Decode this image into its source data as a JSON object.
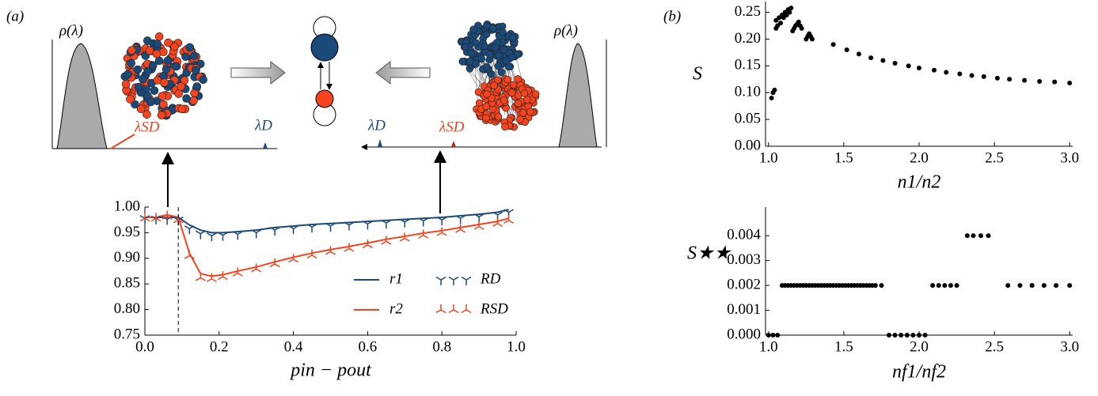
{
  "panel_labels": [
    "(a)",
    "(b)"
  ],
  "insets": {
    "left": {
      "density_label": "ρ(λ)",
      "lambda_sd": "λSD",
      "lambda_d": "λD"
    },
    "right": {
      "density_label": "ρ(λ)",
      "lambda_sd": "λSD",
      "lambda_d": "λD"
    }
  },
  "chart_data": [
    {
      "type": "line",
      "xlabel": "pin − pout",
      "xlim": [
        0,
        1
      ],
      "ylim": [
        0.75,
        1.0
      ],
      "xticks": [
        {
          "value": 0,
          "label": "0.0"
        },
        0.2,
        0.4,
        0.6,
        0.8,
        {
          "value": 1,
          "label": "1.0"
        }
      ],
      "yticks": [
        0.75,
        {
          "value": 0.8,
          "label": "0.80"
        },
        0.85,
        {
          "value": 0.9,
          "label": "0.90"
        },
        0.95,
        {
          "value": 1,
          "label": "1.00"
        }
      ],
      "vline": 0.09,
      "legend": "lower right",
      "x": [
        0,
        0.03,
        0.06,
        0.09,
        0.12,
        0.15,
        0.18,
        0.21,
        0.25,
        0.3,
        0.35,
        0.4,
        0.45,
        0.5,
        0.55,
        0.6,
        0.65,
        0.7,
        0.75,
        0.8,
        0.85,
        0.9,
        0.95,
        0.98
      ],
      "series": [
        {
          "name": "r1",
          "color": "#1a4a7a",
          "marker": "line",
          "values": [
            0.98,
            0.98,
            0.98,
            0.98,
            0.965,
            0.955,
            0.95,
            0.95,
            0.952,
            0.955,
            0.96,
            0.963,
            0.966,
            0.968,
            0.97,
            0.972,
            0.974,
            0.976,
            0.978,
            0.98,
            0.983,
            0.986,
            0.99,
            0.995
          ]
        },
        {
          "name": "r2",
          "color": "#f5431e",
          "marker": "line",
          "values": [
            0.98,
            0.98,
            0.985,
            0.98,
            0.91,
            0.87,
            0.865,
            0.868,
            0.875,
            0.883,
            0.893,
            0.902,
            0.91,
            0.917,
            0.923,
            0.93,
            0.937,
            0.943,
            0.949,
            0.954,
            0.96,
            0.966,
            0.972,
            0.978
          ]
        },
        {
          "name": "RD",
          "color": "#1a4a7a",
          "marker": "tri_down",
          "values": [
            0.978,
            0.977,
            0.976,
            0.975,
            0.958,
            0.948,
            0.944,
            0.945,
            0.947,
            0.95,
            0.955,
            0.958,
            0.961,
            0.963,
            0.965,
            0.967,
            0.969,
            0.971,
            0.973,
            0.975,
            0.978,
            0.981,
            0.985,
            0.99
          ]
        },
        {
          "name": "RSD",
          "color": "#f5431e",
          "marker": "tri_up",
          "values": [
            0.978,
            0.978,
            0.982,
            0.975,
            0.905,
            0.862,
            0.86,
            0.864,
            0.871,
            0.879,
            0.889,
            0.898,
            0.906,
            0.913,
            0.919,
            0.926,
            0.933,
            0.939,
            0.945,
            0.95,
            0.956,
            0.962,
            0.968,
            0.974
          ]
        }
      ]
    },
    {
      "type": "scatter",
      "xlabel": "n1/n2",
      "ylabel": "S",
      "xlim": [
        0.98,
        3.02
      ],
      "ylim": [
        0,
        0.27
      ],
      "xticks": [
        {
          "value": 1,
          "label": "1.0"
        },
        1.5,
        {
          "value": 2,
          "label": "2.0"
        },
        2.5,
        {
          "value": 3,
          "label": "3.0"
        }
      ],
      "yticks": [
        {
          "value": 0,
          "label": "0.00"
        },
        0.05,
        {
          "value": 0.1,
          "label": "0.10"
        },
        0.15,
        {
          "value": 0.2,
          "label": "0.20"
        },
        0.25
      ],
      "series": [
        {
          "name": null,
          "color": "#000000",
          "x": [
            1.02,
            1.03,
            1.04,
            1.05,
            1.05,
            1.06,
            1.07,
            1.08,
            1.09,
            1.1,
            1.11,
            1.12,
            1.13,
            1.14,
            1.15,
            1.16,
            1.17,
            1.18,
            1.19,
            1.2,
            1.21,
            1.22,
            1.25,
            1.26,
            1.27,
            1.28,
            1.29,
            1.43,
            1.52,
            1.6,
            1.68,
            1.76,
            1.84,
            1.93,
            2.0,
            2.1,
            2.18,
            2.27,
            2.35,
            2.43,
            2.52,
            2.6,
            2.7,
            2.8,
            2.9,
            3.0
          ],
          "values": [
            0.09,
            0.1,
            0.105,
            0.22,
            0.235,
            0.225,
            0.24,
            0.23,
            0.245,
            0.24,
            0.25,
            0.245,
            0.255,
            0.25,
            0.258,
            0.215,
            0.22,
            0.225,
            0.228,
            0.232,
            0.225,
            0.22,
            0.2,
            0.205,
            0.21,
            0.205,
            0.2,
            0.19,
            0.18,
            0.172,
            0.165,
            0.16,
            0.155,
            0.15,
            0.146,
            0.142,
            0.138,
            0.135,
            0.132,
            0.13,
            0.127,
            0.125,
            0.123,
            0.121,
            0.12,
            0.118
          ]
        }
      ]
    },
    {
      "type": "scatter",
      "xlabel": "nf1/nf2",
      "ylabel": "S★★",
      "xlim": [
        0.98,
        3.02
      ],
      "ylim": [
        0,
        0.00515
      ],
      "xticks": [
        {
          "value": 1,
          "label": "1.0"
        },
        1.5,
        {
          "value": 2,
          "label": "2.0"
        },
        2.5,
        {
          "value": 3,
          "label": "3.0"
        }
      ],
      "yticks": [
        {
          "value": 0,
          "label": "0.000"
        },
        0.001,
        0.002,
        0.003,
        0.004
      ],
      "series": [
        {
          "name": null,
          "color": "#000000",
          "x": [
            1.0,
            1.03,
            1.06,
            1.09,
            1.11,
            1.13,
            1.15,
            1.17,
            1.19,
            1.21,
            1.23,
            1.25,
            1.27,
            1.29,
            1.31,
            1.33,
            1.35,
            1.37,
            1.39,
            1.41,
            1.43,
            1.45,
            1.47,
            1.49,
            1.51,
            1.53,
            1.55,
            1.57,
            1.59,
            1.61,
            1.63,
            1.65,
            1.67,
            1.69,
            1.71,
            1.75,
            1.8,
            1.84,
            1.88,
            1.92,
            1.96,
            2.0,
            2.04,
            2.09,
            2.13,
            2.17,
            2.21,
            2.25,
            2.32,
            2.36,
            2.41,
            2.46,
            2.59,
            2.67,
            2.75,
            2.83,
            2.91,
            3.0
          ],
          "values": [
            0,
            0,
            0,
            0.002,
            0.002,
            0.002,
            0.002,
            0.002,
            0.002,
            0.002,
            0.002,
            0.002,
            0.002,
            0.002,
            0.002,
            0.002,
            0.002,
            0.002,
            0.002,
            0.002,
            0.002,
            0.002,
            0.002,
            0.002,
            0.002,
            0.002,
            0.002,
            0.002,
            0.002,
            0.002,
            0.002,
            0.002,
            0.002,
            0.002,
            0.002,
            0.002,
            0,
            0,
            0,
            0,
            0,
            0,
            0,
            0.002,
            0.002,
            0.002,
            0.002,
            0.002,
            0.004,
            0.004,
            0.004,
            0.004,
            0.002,
            0.002,
            0.002,
            0.002,
            0.002,
            0.002
          ]
        }
      ]
    }
  ]
}
